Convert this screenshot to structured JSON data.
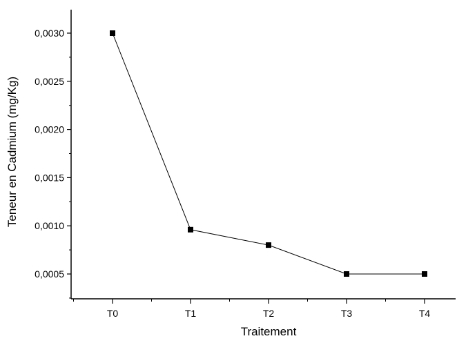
{
  "chart_data": {
    "type": "line",
    "title": "",
    "xlabel": "Traitement",
    "ylabel": "Teneur en Cadmium (mg/Kg)",
    "categories": [
      "T0",
      "T1",
      "T2",
      "T3",
      "T4"
    ],
    "series": [
      {
        "values": [
          0.003,
          0.00096,
          0.0008,
          0.0005,
          0.0005
        ],
        "marker": "square",
        "color": "#000000"
      }
    ],
    "ylim": [
      0.00025,
      0.0033
    ],
    "yticks": [
      0.0005,
      0.001,
      0.0015,
      0.002,
      0.0025,
      0.003
    ],
    "ytick_labels": [
      "0,0005",
      "0,0010",
      "0,0015",
      "0,0020",
      "0,0025",
      "0,0030"
    ],
    "grid": false,
    "legend": "none"
  }
}
